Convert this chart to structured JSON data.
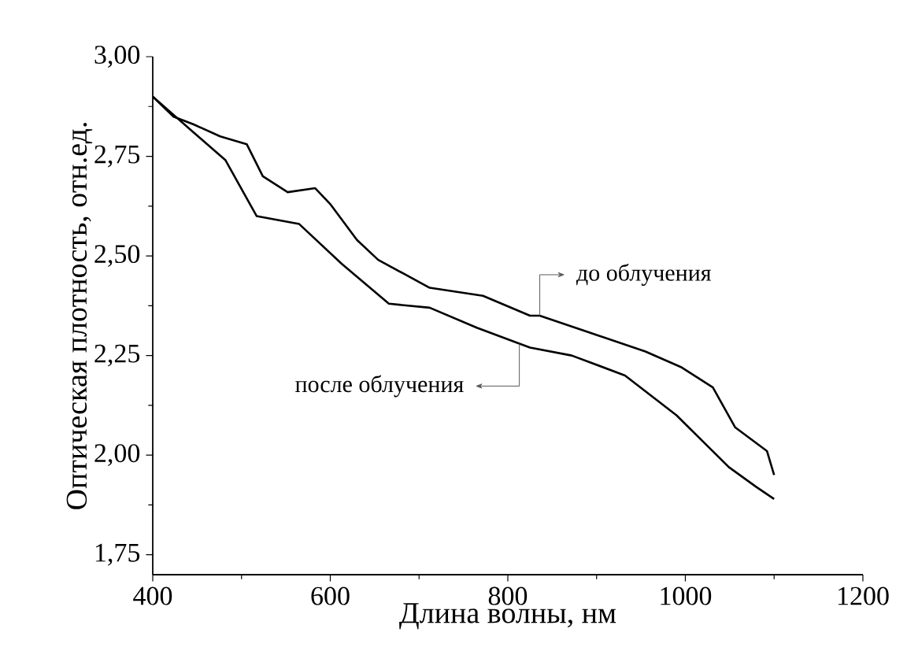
{
  "chart_data": {
    "type": "line",
    "xlabel": "Длина волны, нм",
    "ylabel": "Оптическая плотность, отн.ед.",
    "xlim": [
      400,
      1200
    ],
    "xticks": [
      400,
      600,
      800,
      1000,
      1200
    ],
    "ylim": [
      1.7,
      3.0
    ],
    "yticks": [
      {
        "value": 1.75,
        "label": "1,75"
      },
      {
        "value": 2.0,
        "label": "2,00"
      },
      {
        "value": 2.25,
        "label": "2,25"
      },
      {
        "value": 2.5,
        "label": "2,50"
      },
      {
        "value": 2.75,
        "label": "2,75"
      },
      {
        "value": 3.0,
        "label": "3,00"
      }
    ],
    "legend": false,
    "grid": false,
    "marker": "none",
    "line_style": "solid",
    "series": [
      {
        "name": "до облучения",
        "color": "#000000",
        "x": [
          400,
          423,
          446,
          476,
          506,
          524,
          552,
          583,
          600,
          630,
          654,
          712,
          772,
          825,
          836,
          889,
          955,
          996,
          1031,
          1056,
          1092,
          1100
        ],
        "values": [
          2.9,
          2.85,
          2.83,
          2.8,
          2.78,
          2.7,
          2.66,
          2.67,
          2.63,
          2.54,
          2.49,
          2.42,
          2.4,
          2.35,
          2.35,
          2.31,
          2.26,
          2.22,
          2.17,
          2.07,
          2.01,
          1.95
        ]
      },
      {
        "name": "после облучения",
        "color": "#000000",
        "x": [
          400,
          446,
          482,
          517,
          565,
          613,
          666,
          712,
          765,
          813,
          825,
          872,
          932,
          990,
          1049,
          1080,
          1100
        ],
        "values": [
          2.9,
          2.81,
          2.74,
          2.6,
          2.58,
          2.48,
          2.38,
          2.37,
          2.32,
          2.28,
          2.27,
          2.25,
          2.2,
          2.1,
          1.97,
          1.92,
          1.89
        ]
      }
    ]
  }
}
